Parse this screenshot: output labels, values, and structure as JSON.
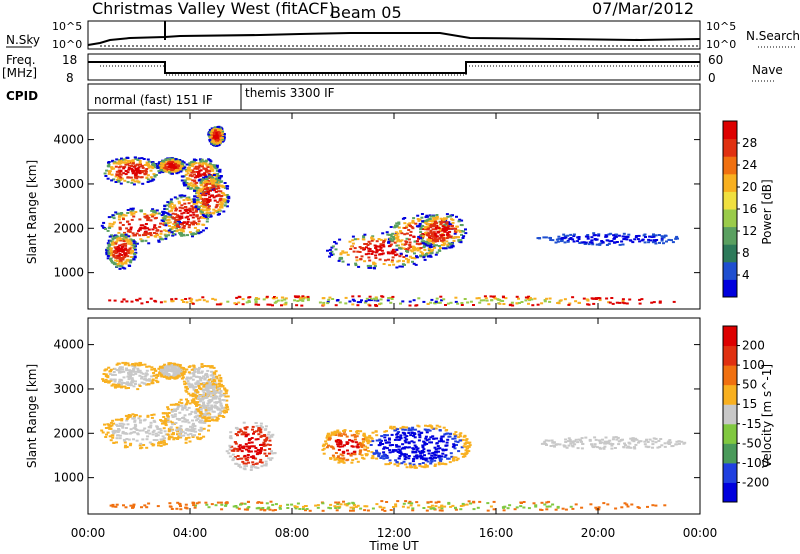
{
  "header": {
    "title": "Christmas Valley West (fitACF)",
    "beam": "Beam 05",
    "date": "07/Mar/2012"
  },
  "top_panels": {
    "nsky_label": "N.Sky",
    "nsearch_label": "N.Search",
    "nsky_ticks": [
      "10^5",
      "10^0"
    ],
    "freq_label_1": "Freq.",
    "freq_label_2": "[MHz]",
    "freq_ticks": [
      "18",
      "8"
    ],
    "nave_label": "Nave",
    "nave_ticks": [
      "60",
      "0"
    ],
    "cpid_label": "CPID",
    "cpid_segments": [
      {
        "label": "normal (fast) 151 IF",
        "start": 0,
        "end": 6
      },
      {
        "label": "themis 3300 IF",
        "start": 6,
        "end": 24
      }
    ]
  },
  "chart_data": [
    {
      "type": "heatmap",
      "title": "",
      "xlabel": "Time UT",
      "ylabel": "Slant Range [km]",
      "xlim": [
        0,
        24
      ],
      "ylim": [
        180,
        4600
      ],
      "x_ticks": [
        "00:00",
        "04:00",
        "08:00",
        "12:00",
        "16:00",
        "20:00",
        "00:00"
      ],
      "y_ticks": [
        "1000",
        "2000",
        "3000",
        "4000"
      ],
      "colorbar": {
        "label": "Power [dB]",
        "ticks": [
          "28",
          "24",
          "20",
          "16",
          "12",
          "8",
          "4"
        ],
        "colors": [
          "#0000dd",
          "#1f4fd0",
          "#2d7a5a",
          "#5aa060",
          "#9acb4a",
          "#f0e040",
          "#f8b020",
          "#f07010",
          "#e03010",
          "#dd0000"
        ]
      }
    },
    {
      "type": "heatmap",
      "title": "",
      "xlabel": "Time UT",
      "ylabel": "Slant Range [km]",
      "xlim": [
        0,
        24
      ],
      "ylim": [
        180,
        4600
      ],
      "x_ticks": [
        "00:00",
        "04:00",
        "08:00",
        "12:00",
        "16:00",
        "20:00",
        "00:00"
      ],
      "y_ticks": [
        "1000",
        "2000",
        "3000",
        "4000"
      ],
      "colorbar": {
        "label": "Velocity [m s^-1]",
        "ticks": [
          "200",
          "100",
          "50",
          "15",
          "-15",
          "-50",
          "-100",
          "-200"
        ],
        "colors": [
          "#0000dd",
          "#2040e0",
          "#4a9a5a",
          "#80c840",
          "#c8c8c8",
          "#f8b020",
          "#f07010",
          "#e03010",
          "#dd0000"
        ]
      }
    }
  ]
}
